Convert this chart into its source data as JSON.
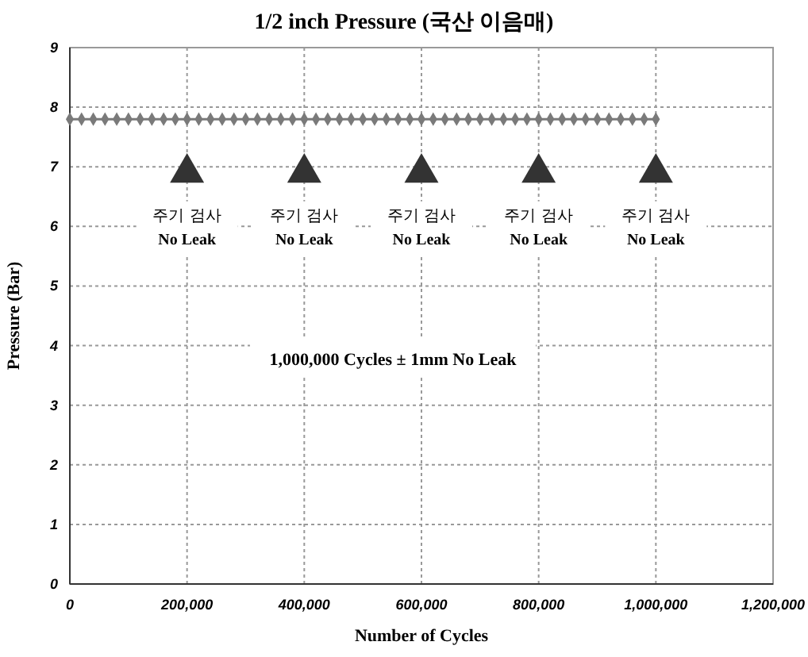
{
  "chart_data": {
    "type": "line",
    "title": "1/2 inch Pressure (국산 이음매)",
    "xlabel": "Number of Cycles",
    "ylabel": "Pressure (Bar)",
    "xlim": [
      0,
      1200000
    ],
    "xticks": [
      {
        "value": 0,
        "label": "0"
      },
      {
        "value": 200000,
        "label": "200,000"
      },
      {
        "value": 400000,
        "label": "400,000"
      },
      {
        "value": 600000,
        "label": "600,000"
      },
      {
        "value": 800000,
        "label": "800,000"
      },
      {
        "value": 1000000,
        "label": "1,000,000"
      },
      {
        "value": 1200000,
        "label": "1,200,000"
      }
    ],
    "ylim": [
      0,
      9
    ],
    "yticks": [
      0,
      1,
      2,
      3,
      4,
      5,
      6,
      7,
      8,
      9
    ],
    "grid": true,
    "series": [
      {
        "color": "#7a7a7a",
        "marker": "diamond",
        "x": [
          0,
          20000,
          40000,
          60000,
          80000,
          100000,
          120000,
          140000,
          160000,
          180000,
          200000,
          220000,
          240000,
          260000,
          280000,
          300000,
          320000,
          340000,
          360000,
          380000,
          400000,
          420000,
          440000,
          460000,
          480000,
          500000,
          520000,
          540000,
          560000,
          580000,
          600000,
          620000,
          640000,
          660000,
          680000,
          700000,
          720000,
          740000,
          760000,
          780000,
          800000,
          820000,
          840000,
          860000,
          880000,
          900000,
          920000,
          940000,
          960000,
          980000,
          1000000
        ],
        "values": [
          7.8,
          7.8,
          7.8,
          7.8,
          7.8,
          7.8,
          7.8,
          7.8,
          7.8,
          7.8,
          7.8,
          7.8,
          7.8,
          7.8,
          7.8,
          7.8,
          7.8,
          7.8,
          7.8,
          7.8,
          7.8,
          7.8,
          7.8,
          7.8,
          7.8,
          7.8,
          7.8,
          7.8,
          7.8,
          7.8,
          7.8,
          7.8,
          7.8,
          7.8,
          7.8,
          7.8,
          7.8,
          7.8,
          7.8,
          7.8,
          7.8,
          7.8,
          7.8,
          7.8,
          7.8,
          7.8,
          7.8,
          7.8,
          7.8,
          7.8,
          7.8
        ]
      },
      {
        "type": "scatter",
        "color": "#333333",
        "marker": "triangle",
        "x": [
          200000,
          400000,
          600000,
          800000,
          1000000
        ],
        "values": [
          6.9,
          6.9,
          6.9,
          6.9,
          6.9
        ]
      }
    ],
    "annotations": [
      "주기 검사\nNo Leak",
      "주기 검사\nNo Leak",
      "주기 검사\nNo Leak",
      "주기 검사\nNo Leak",
      "주기 검사\nNo Leak",
      "1,000,000 Cycles ± 1mm No Leak"
    ]
  }
}
